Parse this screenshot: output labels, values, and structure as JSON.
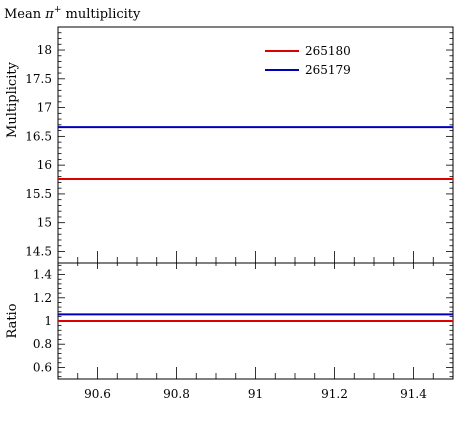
{
  "title_prefix": "Mean ",
  "title_symbol": "π",
  "title_superscript": "+",
  "title_suffix": " multiplicity",
  "chart_data": [
    {
      "type": "line",
      "ylabel": "Multiplicity",
      "xlim": [
        90.5,
        91.5
      ],
      "ylim": [
        14.3,
        18.4
      ],
      "yticks": [
        14.5,
        15,
        15.5,
        16,
        16.5,
        17,
        17.5,
        18
      ],
      "ytick_labels": [
        "14.5",
        "15",
        "15.5",
        "16",
        "16.5",
        "17",
        "17.5",
        "18"
      ],
      "legend_position": "top-right",
      "series": [
        {
          "name": "265180",
          "color": "#dd0000",
          "x": [
            90.5,
            91.5
          ],
          "y": [
            15.76,
            15.76
          ]
        },
        {
          "name": "265179",
          "color": "#0000bb",
          "x": [
            90.5,
            91.5
          ],
          "y": [
            16.66,
            16.66
          ]
        }
      ]
    },
    {
      "type": "line",
      "ylabel": "Ratio",
      "xlim": [
        90.5,
        91.5
      ],
      "ylim": [
        0.5,
        1.5
      ],
      "yticks": [
        0.6,
        0.8,
        1.0,
        1.2,
        1.4
      ],
      "ytick_labels": [
        "0.6",
        "0.8",
        "1",
        "1.2",
        "1.4"
      ],
      "xticks": [
        90.6,
        90.8,
        91.0,
        91.2,
        91.4
      ],
      "xtick_labels": [
        "90.6",
        "90.8",
        "91",
        "91.2",
        "91.4"
      ],
      "reference_line": 1.0,
      "series": [
        {
          "name": "265180",
          "color": "#dd0000",
          "x": [
            90.5,
            91.5
          ],
          "y": [
            1.0,
            1.0
          ]
        },
        {
          "name": "265179",
          "color": "#0000bb",
          "x": [
            90.5,
            91.5
          ],
          "y": [
            1.057,
            1.057
          ]
        }
      ]
    }
  ]
}
